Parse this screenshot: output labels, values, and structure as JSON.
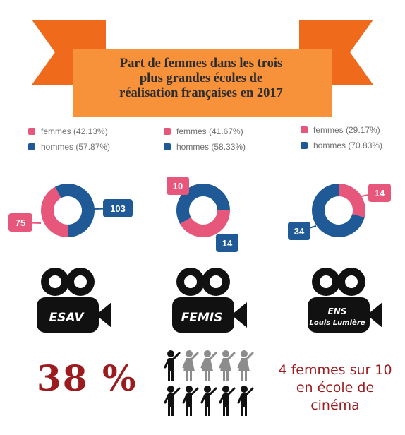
{
  "title": {
    "line1": "Part de femmes dans les trois",
    "line2": "plus grandes écoles de",
    "line3": "réalisation françaises en 2017"
  },
  "colors": {
    "femmes": "#e7577b",
    "hommes": "#1f5a96",
    "banner": "#f7923a",
    "ribbon": "#f06a1c",
    "ribbon_dark": "#c0471b",
    "accent": "#9b1b1f"
  },
  "chart_data": [
    {
      "type": "pie",
      "school": "ESAV",
      "legend": [
        "femmes (42.13%)",
        "hommes (57.87%)"
      ],
      "categories": [
        "femmes",
        "hommes"
      ],
      "values": [
        75,
        103
      ],
      "labels": [
        "75",
        "103"
      ]
    },
    {
      "type": "pie",
      "school": "FEMIS",
      "legend": [
        "femmes (41.67%)",
        "hommes (58.33%)"
      ],
      "categories": [
        "femmes",
        "hommes"
      ],
      "values": [
        10,
        14
      ],
      "labels": [
        "10",
        "14"
      ]
    },
    {
      "type": "pie",
      "school": "ENS Louis Lumière",
      "legend": [
        "femmes (29.17%)",
        "hommes (70.83%)"
      ],
      "categories": [
        "femmes",
        "hommes"
      ],
      "values": [
        14,
        34
      ],
      "labels": [
        "14",
        "34"
      ]
    }
  ],
  "cameras": [
    {
      "line1": "ESAV",
      "line2": ""
    },
    {
      "line1": "FEMIS",
      "line2": ""
    },
    {
      "line1": "ENS",
      "line2": "Louis Lumière"
    }
  ],
  "stats": {
    "percent": "38 %",
    "text": "4 femmes sur 10 en école de cinéma",
    "women_icons": 4,
    "total_icons": 10
  }
}
